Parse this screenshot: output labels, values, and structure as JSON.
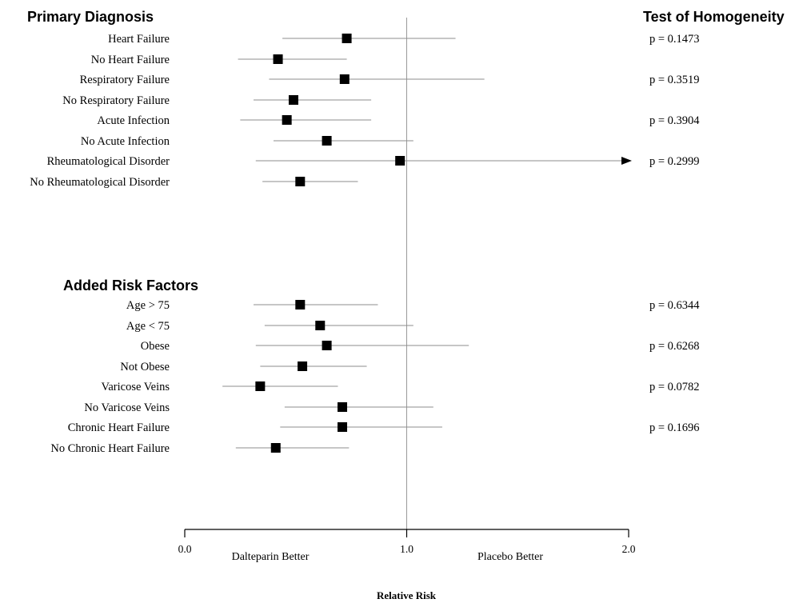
{
  "chart_data": {
    "type": "forest",
    "xlabel": "Relative Risk",
    "xlim": [
      0.0,
      2.0
    ],
    "xticks": [
      {
        "value": 0.0,
        "label": "0.0"
      },
      {
        "value": 1.0,
        "label": "1.0"
      },
      {
        "value": 2.0,
        "label": "2.0"
      }
    ],
    "reference_line": 1.0,
    "left_annotation": "Dalteparin Better",
    "right_annotation": "Placebo Better",
    "homogeneity_header": "Test of Homogeneity",
    "sections": [
      {
        "title": "Primary Diagnosis",
        "groups": [
          {
            "p_value": "p = 0.1473",
            "rows": [
              {
                "label": "Heart Failure",
                "rr": 0.73,
                "lower": 0.44,
                "upper": 1.22
              },
              {
                "label": "No Heart Failure",
                "rr": 0.42,
                "lower": 0.24,
                "upper": 0.73
              }
            ]
          },
          {
            "p_value": "p = 0.3519",
            "rows": [
              {
                "label": "Respiratory Failure",
                "rr": 0.72,
                "lower": 0.38,
                "upper": 1.35
              },
              {
                "label": "No Respiratory Failure",
                "rr": 0.49,
                "lower": 0.31,
                "upper": 0.84
              }
            ]
          },
          {
            "p_value": "p = 0.3904",
            "rows": [
              {
                "label": "Acute Infection",
                "rr": 0.46,
                "lower": 0.25,
                "upper": 0.84
              },
              {
                "label": "No Acute Infection",
                "rr": 0.64,
                "lower": 0.4,
                "upper": 1.03
              }
            ]
          },
          {
            "p_value": "p = 0.2999",
            "rows": [
              {
                "label": "Rheumatological Disorder",
                "rr": 0.97,
                "lower": 0.32,
                "upper": 2.0,
                "arrow": true
              },
              {
                "label": "No Rheumatological Disorder",
                "rr": 0.52,
                "lower": 0.35,
                "upper": 0.78
              }
            ]
          }
        ]
      },
      {
        "title": "Added Risk Factors",
        "groups": [
          {
            "p_value": "p = 0.6344",
            "rows": [
              {
                "label": "Age > 75",
                "rr": 0.52,
                "lower": 0.31,
                "upper": 0.87
              },
              {
                "label": "Age < 75",
                "rr": 0.61,
                "lower": 0.36,
                "upper": 1.03
              }
            ]
          },
          {
            "p_value": "p = 0.6268",
            "rows": [
              {
                "label": "Obese",
                "rr": 0.64,
                "lower": 0.32,
                "upper": 1.28
              },
              {
                "label": "Not Obese",
                "rr": 0.53,
                "lower": 0.34,
                "upper": 0.82
              }
            ]
          },
          {
            "p_value": "p = 0.0782",
            "rows": [
              {
                "label": "Varicose Veins",
                "rr": 0.34,
                "lower": 0.17,
                "upper": 0.69
              },
              {
                "label": "No Varicose Veins",
                "rr": 0.71,
                "lower": 0.45,
                "upper": 1.12
              }
            ]
          },
          {
            "p_value": "p = 0.1696",
            "rows": [
              {
                "label": "Chronic Heart Failure",
                "rr": 0.71,
                "lower": 0.43,
                "upper": 1.16
              },
              {
                "label": "No Chronic Heart Failure",
                "rr": 0.41,
                "lower": 0.23,
                "upper": 0.74
              }
            ]
          }
        ]
      }
    ]
  }
}
